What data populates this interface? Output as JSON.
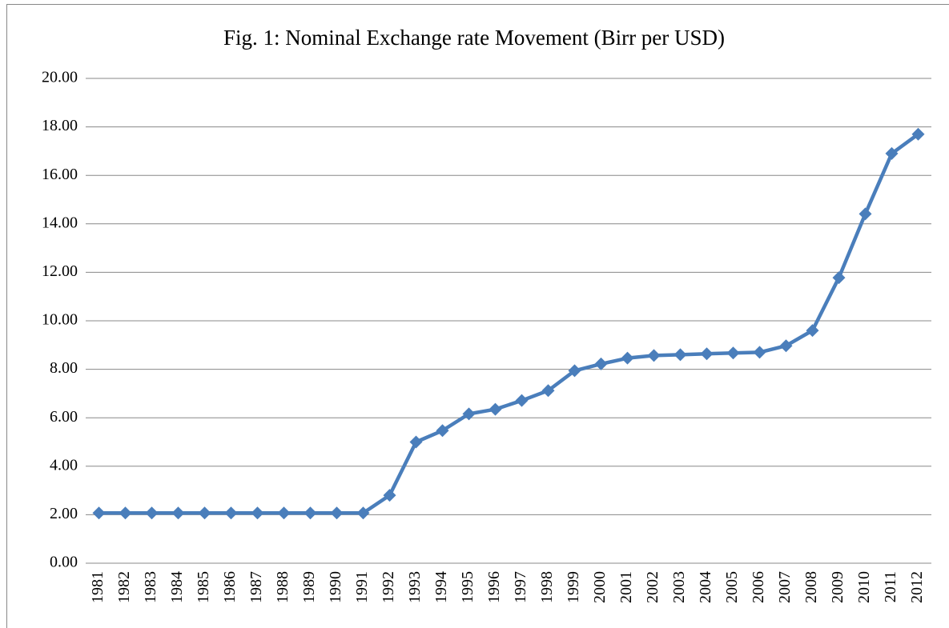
{
  "chart_data": {
    "type": "line",
    "title": "Fig. 1: Nominal Exchange rate Movement  (Birr per USD)",
    "categories": [
      "1981",
      "1982",
      "1983",
      "1984",
      "1985",
      "1986",
      "1987",
      "1988",
      "1989",
      "1990",
      "1991",
      "1992",
      "1993",
      "1994",
      "1995",
      "1996",
      "1997",
      "1998",
      "1999",
      "2000",
      "2001",
      "2002",
      "2003",
      "2004",
      "2005",
      "2006",
      "2007",
      "2008",
      "2009",
      "2010",
      "2011",
      "2012"
    ],
    "series": [
      {
        "color": "#4a7ebb",
        "values": [
          2.07,
          2.07,
          2.07,
          2.07,
          2.07,
          2.07,
          2.07,
          2.07,
          2.07,
          2.07,
          2.07,
          2.8,
          5.0,
          5.47,
          6.16,
          6.35,
          6.71,
          7.12,
          7.94,
          8.22,
          8.46,
          8.57,
          8.6,
          8.64,
          8.67,
          8.7,
          8.97,
          9.6,
          11.78,
          14.41,
          16.9,
          17.7
        ]
      }
    ],
    "ylim": [
      0,
      20
    ],
    "yticks": [
      {
        "value": 0,
        "label": "0.00"
      },
      {
        "value": 2,
        "label": "2.00"
      },
      {
        "value": 4,
        "label": "4.00"
      },
      {
        "value": 6,
        "label": "6.00"
      },
      {
        "value": 8,
        "label": "8.00"
      },
      {
        "value": 10,
        "label": "10.00"
      },
      {
        "value": 12,
        "label": "12.00"
      },
      {
        "value": 14,
        "label": "14.00"
      },
      {
        "value": 16,
        "label": "16.00"
      },
      {
        "value": 18,
        "label": "18.00"
      },
      {
        "value": 20,
        "label": "20.00"
      }
    ],
    "grid": true
  }
}
